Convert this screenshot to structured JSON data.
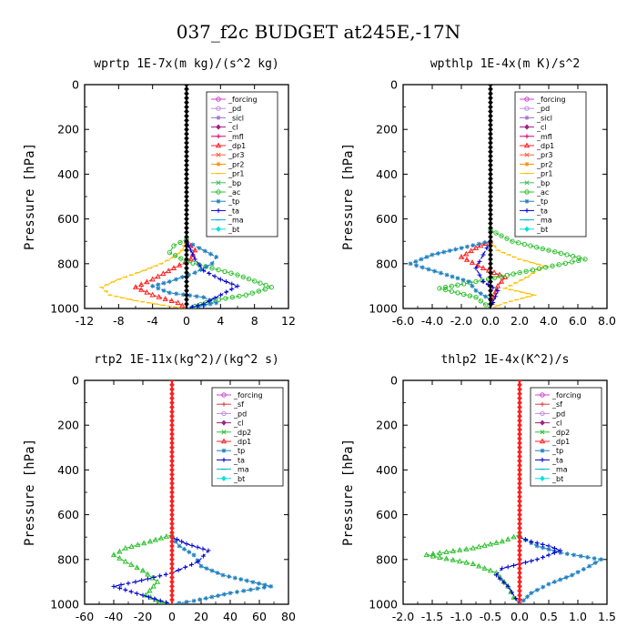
{
  "figure_title": "037_f2c  BUDGET at245E,-17N",
  "chart_data": [
    {
      "type": "line",
      "title": "wprtp  1E-7x(m kg)/(s^2 kg)",
      "ylabel": "Pressure [hPa]",
      "xlim": [
        -12,
        12
      ],
      "ylim": [
        1000,
        0
      ],
      "xticks": [
        -12,
        -8,
        -4,
        0,
        4,
        8,
        12
      ],
      "xtick_labels": [
        "-12",
        "-8",
        "-4",
        "0",
        "4",
        "8",
        "12"
      ],
      "yticks": [
        0,
        200,
        400,
        600,
        800,
        1000
      ],
      "legend_position": "top-right",
      "legend": [
        "_forcing",
        "_pd",
        "_sicl",
        "_cl",
        "_mfl",
        "_dp1",
        "_pr3",
        "_pr2",
        "_pr1",
        "_bp",
        "_ac",
        "_tp",
        "_ta",
        "_ma",
        "_bt"
      ],
      "series": [
        {
          "name": "_pr1",
          "color": "#ffc000",
          "points": [
            [
              0,
              700
            ],
            [
              -0.5,
              740
            ],
            [
              -1.5,
              770
            ],
            [
              -3,
              800
            ],
            [
              -5,
              830
            ],
            [
              -8,
              870
            ],
            [
              -10,
              905
            ],
            [
              -9,
              940
            ],
            [
              -6,
              965
            ],
            [
              -2,
              990
            ],
            [
              0,
              1000
            ]
          ]
        },
        {
          "name": "_dp1",
          "color": "#ff2020",
          "points": [
            [
              0,
              700
            ],
            [
              1,
              740
            ],
            [
              0.5,
              780
            ],
            [
              -1.5,
              820
            ],
            [
              -4,
              870
            ],
            [
              -6,
              905
            ],
            [
              -4,
              940
            ],
            [
              -1,
              975
            ],
            [
              0,
              1000
            ]
          ]
        },
        {
          "name": "_ac",
          "color": "#30c030",
          "points": [
            [
              0,
              690
            ],
            [
              -1.5,
              720
            ],
            [
              -2,
              750
            ],
            [
              0,
              790
            ],
            [
              6,
              850
            ],
            [
              10,
              905
            ],
            [
              7,
              940
            ],
            [
              3,
              965
            ],
            [
              1,
              990
            ],
            [
              0,
              1000
            ]
          ]
        },
        {
          "name": "_tp",
          "color": "#2080c0",
          "points": [
            [
              0,
              700
            ],
            [
              1.5,
              730
            ],
            [
              3.5,
              770
            ],
            [
              3,
              800
            ],
            [
              1,
              840
            ],
            [
              -2,
              880
            ],
            [
              -4,
              900
            ],
            [
              -2,
              930
            ],
            [
              2,
              950
            ],
            [
              3.5,
              975
            ],
            [
              0,
              1000
            ]
          ]
        },
        {
          "name": "_ta",
          "color": "#0000d0",
          "points": [
            [
              0,
              700
            ],
            [
              0.5,
              740
            ],
            [
              1,
              780
            ],
            [
              2,
              830
            ],
            [
              4,
              870
            ],
            [
              6,
              900
            ],
            [
              4,
              940
            ],
            [
              2,
              980
            ],
            [
              0,
              1000
            ]
          ]
        },
        {
          "name": "_forcing",
          "color": "#000000",
          "points": [
            [
              0,
              0
            ],
            [
              0,
              200
            ],
            [
              0,
              400
            ],
            [
              0,
              600
            ],
            [
              0,
              800
            ],
            [
              0,
              1000
            ]
          ]
        }
      ]
    },
    {
      "type": "line",
      "title": "wpthlp  1E-4x(m K)/s^2",
      "ylabel": "Pressure [hPa]",
      "xlim": [
        -6,
        8
      ],
      "ylim": [
        1000,
        0
      ],
      "xticks": [
        -6,
        -4,
        -2,
        0,
        2,
        4,
        6,
        8
      ],
      "xtick_labels": [
        "-6.0",
        "-4.0",
        "-2.0",
        "0.0",
        "2.0",
        "4.0",
        "6.0",
        "8.0"
      ],
      "yticks": [
        0,
        200,
        400,
        600,
        800,
        1000
      ],
      "legend_position": "top-right",
      "legend": [
        "_forcing",
        "_pd",
        "_sicl",
        "_cl",
        "_mfl",
        "_dp1",
        "_pr3",
        "_pr2",
        "_pr1",
        "_bp",
        "_ac",
        "_tp",
        "_ta",
        "_ma",
        "_bt"
      ],
      "series": [
        {
          "name": "_pr1",
          "color": "#ffc000",
          "points": [
            [
              0,
              700
            ],
            [
              0.5,
              740
            ],
            [
              2,
              780
            ],
            [
              3.7,
              810
            ],
            [
              2.5,
              860
            ],
            [
              1,
              910
            ],
            [
              3,
              940
            ],
            [
              1,
              975
            ],
            [
              0,
              1000
            ]
          ]
        },
        {
          "name": "_dp1",
          "color": "#ff2020",
          "points": [
            [
              0,
              700
            ],
            [
              -1,
              730
            ],
            [
              -2,
              770
            ],
            [
              -0.5,
              820
            ],
            [
              1,
              860
            ],
            [
              0.5,
              900
            ],
            [
              0.2,
              950
            ],
            [
              0,
              1000
            ]
          ]
        },
        {
          "name": "_ac",
          "color": "#30c030",
          "points": [
            [
              0,
              650
            ],
            [
              1.5,
              700
            ],
            [
              4,
              740
            ],
            [
              6.5,
              780
            ],
            [
              2,
              840
            ],
            [
              -1,
              880
            ],
            [
              -3.5,
              910
            ],
            [
              -1,
              950
            ],
            [
              0,
              1000
            ]
          ]
        },
        {
          "name": "_tp",
          "color": "#2080c0",
          "points": [
            [
              0,
              700
            ],
            [
              -2,
              730
            ],
            [
              -4,
              760
            ],
            [
              -5.5,
              800
            ],
            [
              -3,
              850
            ],
            [
              -1.5,
              880
            ],
            [
              -1,
              920
            ],
            [
              0,
              960
            ],
            [
              0,
              1000
            ]
          ]
        },
        {
          "name": "_ta",
          "color": "#0000d0",
          "points": [
            [
              0,
              700
            ],
            [
              -0.5,
              760
            ],
            [
              -1,
              820
            ],
            [
              -0.5,
              880
            ],
            [
              0.5,
              920
            ],
            [
              0,
              1000
            ]
          ]
        },
        {
          "name": "_forcing",
          "color": "#000000",
          "points": [
            [
              0,
              0
            ],
            [
              0,
              200
            ],
            [
              0,
              400
            ],
            [
              0,
              600
            ],
            [
              0,
              800
            ],
            [
              0,
              1000
            ]
          ]
        }
      ]
    },
    {
      "type": "line",
      "title": "rtp2  1E-11x(kg^2)/(kg^2 s)",
      "ylabel": "Pressure [hPa]",
      "xlim": [
        -60,
        80
      ],
      "ylim": [
        1000,
        0
      ],
      "xticks": [
        -60,
        -40,
        -20,
        0,
        20,
        40,
        60,
        80
      ],
      "xtick_labels": [
        "-60",
        "-40",
        "-20",
        "0",
        "20",
        "40",
        "60",
        "80"
      ],
      "yticks": [
        0,
        200,
        400,
        600,
        800,
        1000
      ],
      "legend_position": "top-right",
      "legend": [
        "_forcing",
        "_sf",
        "_pd",
        "_cl",
        "_dp2",
        "_dp1",
        "_tp",
        "_ta",
        "_ma",
        "_bt"
      ],
      "series": [
        {
          "name": "_dp1",
          "color": "#30c030",
          "points": [
            [
              0,
              690
            ],
            [
              -15,
              720
            ],
            [
              -32,
              750
            ],
            [
              -40,
              780
            ],
            [
              -32,
              810
            ],
            [
              -20,
              850
            ],
            [
              -10,
              900
            ],
            [
              -18,
              960
            ],
            [
              -8,
              990
            ],
            [
              0,
              1000
            ]
          ]
        },
        {
          "name": "_tp",
          "color": "#2080c0",
          "points": [
            [
              0,
              700
            ],
            [
              5,
              740
            ],
            [
              15,
              780
            ],
            [
              20,
              830
            ],
            [
              35,
              870
            ],
            [
              68,
              920
            ],
            [
              40,
              950
            ],
            [
              15,
              985
            ],
            [
              0,
              1000
            ]
          ]
        },
        {
          "name": "_ta",
          "color": "#0000d0",
          "points": [
            [
              0,
              700
            ],
            [
              10,
              730
            ],
            [
              25,
              760
            ],
            [
              18,
              810
            ],
            [
              0,
              860
            ],
            [
              -25,
              900
            ],
            [
              -40,
              920
            ],
            [
              -20,
              960
            ],
            [
              0,
              1000
            ]
          ]
        },
        {
          "name": "_forcing",
          "color": "#ff2020",
          "points": [
            [
              0,
              0
            ],
            [
              0,
              200
            ],
            [
              0,
              400
            ],
            [
              0,
              600
            ],
            [
              0,
              800
            ],
            [
              0,
              1000
            ]
          ]
        }
      ]
    },
    {
      "type": "line",
      "title": "thlp2  1E-4x(K^2)/s",
      "ylabel": "Pressure [hPa]",
      "xlim": [
        -2,
        1.5
      ],
      "ylim": [
        1000,
        0
      ],
      "xticks": [
        -2,
        -1.5,
        -1,
        -0.5,
        0,
        0.5,
        1,
        1.5
      ],
      "xtick_labels": [
        "-2.0",
        "-1.5",
        "-1.0",
        "-0.5",
        "0.0",
        "0.5",
        "1.0",
        "1.5"
      ],
      "yticks": [
        0,
        200,
        400,
        600,
        800,
        1000
      ],
      "legend_position": "top-right",
      "legend": [
        "_forcing",
        "_sf",
        "_pd",
        "_cl",
        "_dp2",
        "_dp1",
        "_tp",
        "_ta",
        "_ma",
        "_bt"
      ],
      "series": [
        {
          "name": "_dp1",
          "color": "#30c030",
          "points": [
            [
              0,
              690
            ],
            [
              -0.3,
              720
            ],
            [
              -0.8,
              750
            ],
            [
              -1.6,
              780
            ],
            [
              -0.8,
              820
            ],
            [
              -0.4,
              860
            ],
            [
              -0.2,
              920
            ],
            [
              -0.1,
              970
            ],
            [
              0,
              1000
            ]
          ]
        },
        {
          "name": "_tp",
          "color": "#2080c0",
          "points": [
            [
              0,
              700
            ],
            [
              0.3,
              740
            ],
            [
              0.7,
              770
            ],
            [
              1.4,
              800
            ],
            [
              1.2,
              830
            ],
            [
              0.9,
              870
            ],
            [
              0.5,
              910
            ],
            [
              0.2,
              950
            ],
            [
              0,
              1000
            ]
          ]
        },
        {
          "name": "_ta",
          "color": "#0000d0",
          "points": [
            [
              0,
              700
            ],
            [
              0.2,
              720
            ],
            [
              0.5,
              740
            ],
            [
              0.7,
              760
            ],
            [
              0.3,
              800
            ],
            [
              -0.3,
              840
            ],
            [
              -0.4,
              870
            ],
            [
              -0.2,
              920
            ],
            [
              0,
              1000
            ]
          ]
        },
        {
          "name": "_forcing",
          "color": "#ff2020",
          "points": [
            [
              0,
              0
            ],
            [
              0,
              200
            ],
            [
              0,
              400
            ],
            [
              0,
              600
            ],
            [
              0,
              800
            ],
            [
              0,
              1000
            ]
          ]
        }
      ]
    }
  ],
  "legend_styles": {
    "_forcing": {
      "color": "#d040d0",
      "marker": "o"
    },
    "_pd": {
      "color": "#c090e0",
      "marker": "o"
    },
    "_sicl": {
      "color": "#a070d0",
      "marker": "*"
    },
    "_cl": {
      "color": "#a02080",
      "marker": "d"
    },
    "_mfl": {
      "color": "#d00070",
      "marker": "+"
    },
    "_dp1": {
      "color": "#ff2020",
      "marker": "^"
    },
    "_pr3": {
      "color": "#ff6040",
      "marker": "x"
    },
    "_pr2": {
      "color": "#ff9000",
      "marker": "*"
    },
    "_pr1": {
      "color": "#ffc000",
      "marker": "-"
    },
    "_bp": {
      "color": "#40c060",
      "marker": "x"
    },
    "_ac": {
      "color": "#30c030",
      "marker": "o"
    },
    "_tp": {
      "color": "#2080c0",
      "marker": "*"
    },
    "_ta": {
      "color": "#0000d0",
      "marker": "+"
    },
    "_ma": {
      "color": "#00b0d0",
      "marker": "-"
    },
    "_bt": {
      "color": "#00e0e0",
      "marker": "d"
    },
    "_sf": {
      "color": "#d04040",
      "marker": "+"
    },
    "_dp2": {
      "color": "#30c030",
      "marker": "x"
    }
  }
}
